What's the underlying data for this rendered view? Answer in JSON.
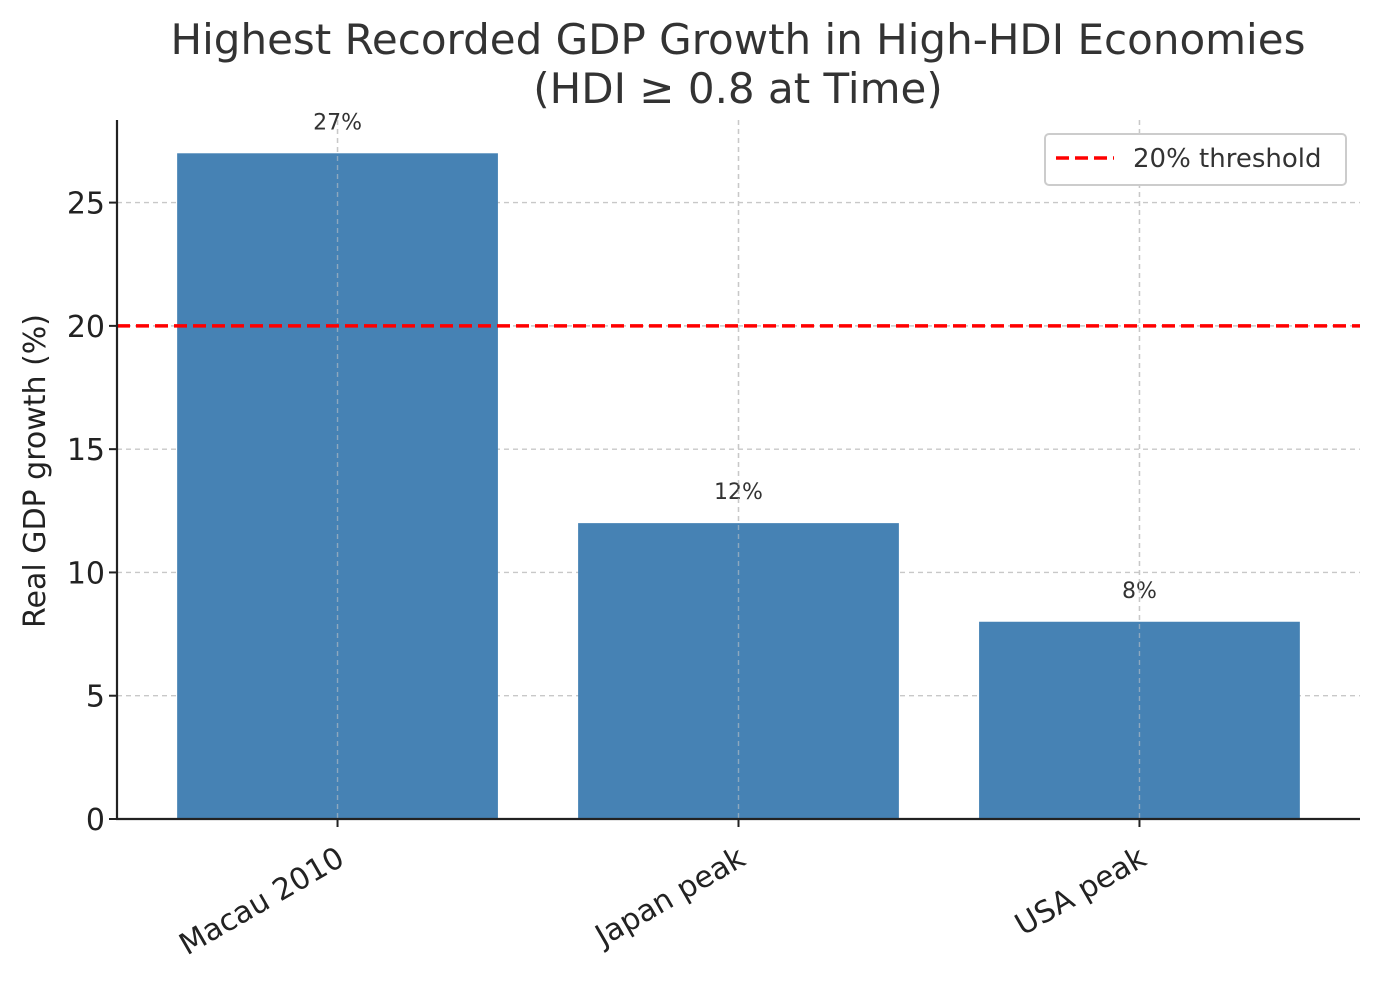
{
  "chart_data": {
    "type": "bar",
    "title_lines": [
      "Highest Recorded GDP Growth in High-HDI Economies",
      "(HDI ≥ 0.8 at Time)"
    ],
    "xlabel": "",
    "ylabel": "Real GDP growth (%)",
    "categories": [
      "Macau 2010",
      "Japan peak",
      "USA peak"
    ],
    "values": [
      27,
      12,
      8
    ],
    "value_labels": [
      "27%",
      "12%",
      "8%"
    ],
    "ylim": [
      0,
      28.35
    ],
    "yticks": [
      0,
      5,
      10,
      15,
      20,
      25
    ],
    "ytick_labels": [
      "0",
      "5",
      "10",
      "15",
      "20",
      "25"
    ],
    "grid": true,
    "legend_position": "upper right",
    "reference_line": {
      "y": 20,
      "label": "20% threshold",
      "style": "dashed"
    },
    "colors": {
      "bar": "#4682b4",
      "threshold": "#ff0000",
      "grid": "#c8c8c8",
      "text": "#333333",
      "axis": "#222222"
    }
  }
}
